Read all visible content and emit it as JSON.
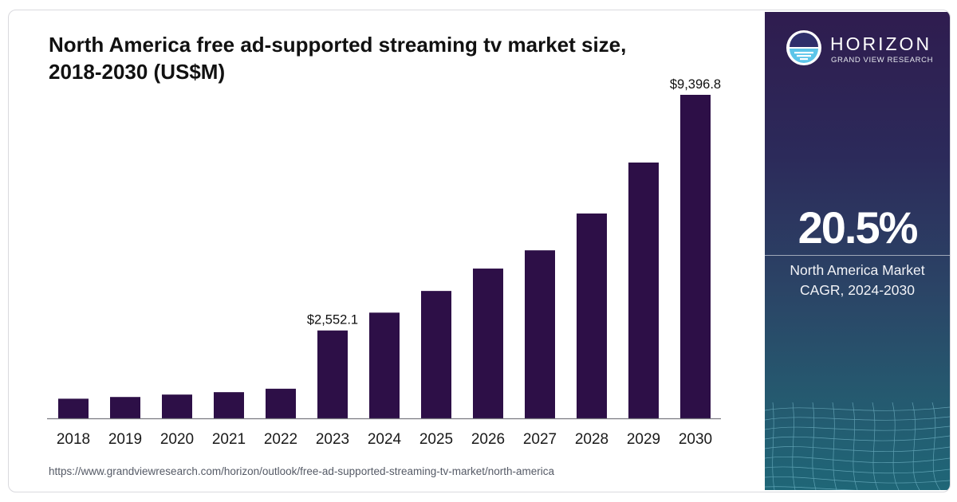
{
  "chart_data": {
    "type": "bar",
    "title": "North America free ad-supported streaming tv market size,\n2018-2030 (US$M)",
    "categories": [
      "2018",
      "2019",
      "2020",
      "2021",
      "2022",
      "2023",
      "2024",
      "2025",
      "2026",
      "2027",
      "2028",
      "2029",
      "2030"
    ],
    "values": [
      570,
      620,
      690,
      760,
      860,
      2552.1,
      3070,
      3700,
      4350,
      4880,
      5950,
      7430,
      9396.8
    ],
    "data_labels": [
      {
        "index": 5,
        "text": "$2,552.1"
      },
      {
        "index": 12,
        "text": "$9,396.8"
      }
    ],
    "ylim": [
      0,
      9396.8
    ],
    "xlabel": "",
    "ylabel": "",
    "grid": false,
    "bar_color": "#2d0f47",
    "axis_color": "#7a7a80"
  },
  "source_url": "https://www.grandviewresearch.com/horizon/outlook/free-ad-supported-streaming-tv-market/north-america",
  "sidebar": {
    "brand": "HORIZON",
    "brand_sub": "GRAND VIEW RESEARCH",
    "cagr_value": "20.5%",
    "cagr_label": "North America Market\nCAGR, 2024-2030",
    "logo_icon": "sunrise-circle-icon"
  }
}
